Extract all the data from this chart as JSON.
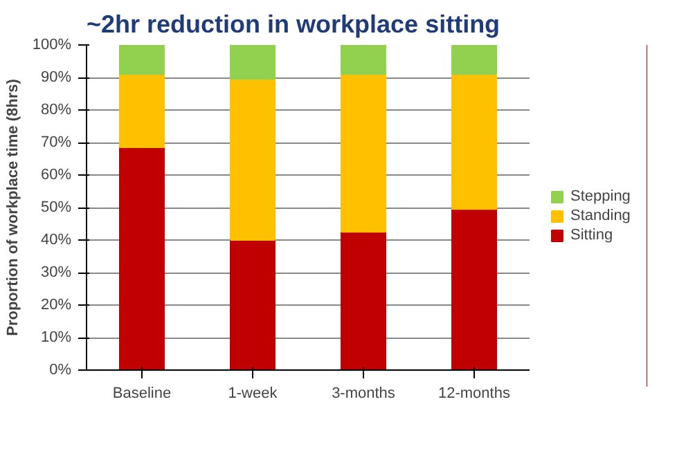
{
  "chart_data": {
    "type": "bar",
    "title": "~2hr reduction in workplace sitting",
    "ylabel": "Proportion of workplace time (8hrs)",
    "categories": [
      "Baseline",
      "1-week",
      "3-months",
      "12-months"
    ],
    "stacked": true,
    "series": [
      {
        "name": "Sitting",
        "color": "#c00000",
        "values": [
          68.5,
          40,
          42.5,
          49.5
        ]
      },
      {
        "name": "Standing",
        "color": "#ffc000",
        "values": [
          22.5,
          49.5,
          48.5,
          41.5
        ]
      },
      {
        "name": "Stepping",
        "color": "#92d050",
        "values": [
          9,
          10.5,
          9,
          9
        ]
      }
    ],
    "ylim": [
      0,
      100
    ],
    "yticks": [
      {
        "value": 0,
        "label": "0%"
      },
      {
        "value": 10,
        "label": "10%"
      },
      {
        "value": 20,
        "label": "20%"
      },
      {
        "value": 30,
        "label": "30%"
      },
      {
        "value": 40,
        "label": "40%"
      },
      {
        "value": 50,
        "label": "50%"
      },
      {
        "value": 60,
        "label": "60%"
      },
      {
        "value": 70,
        "label": "70%"
      },
      {
        "value": 80,
        "label": "80%"
      },
      {
        "value": 90,
        "label": "90%"
      },
      {
        "value": 100,
        "label": "100%"
      }
    ],
    "grid": "y",
    "legend": "right"
  }
}
